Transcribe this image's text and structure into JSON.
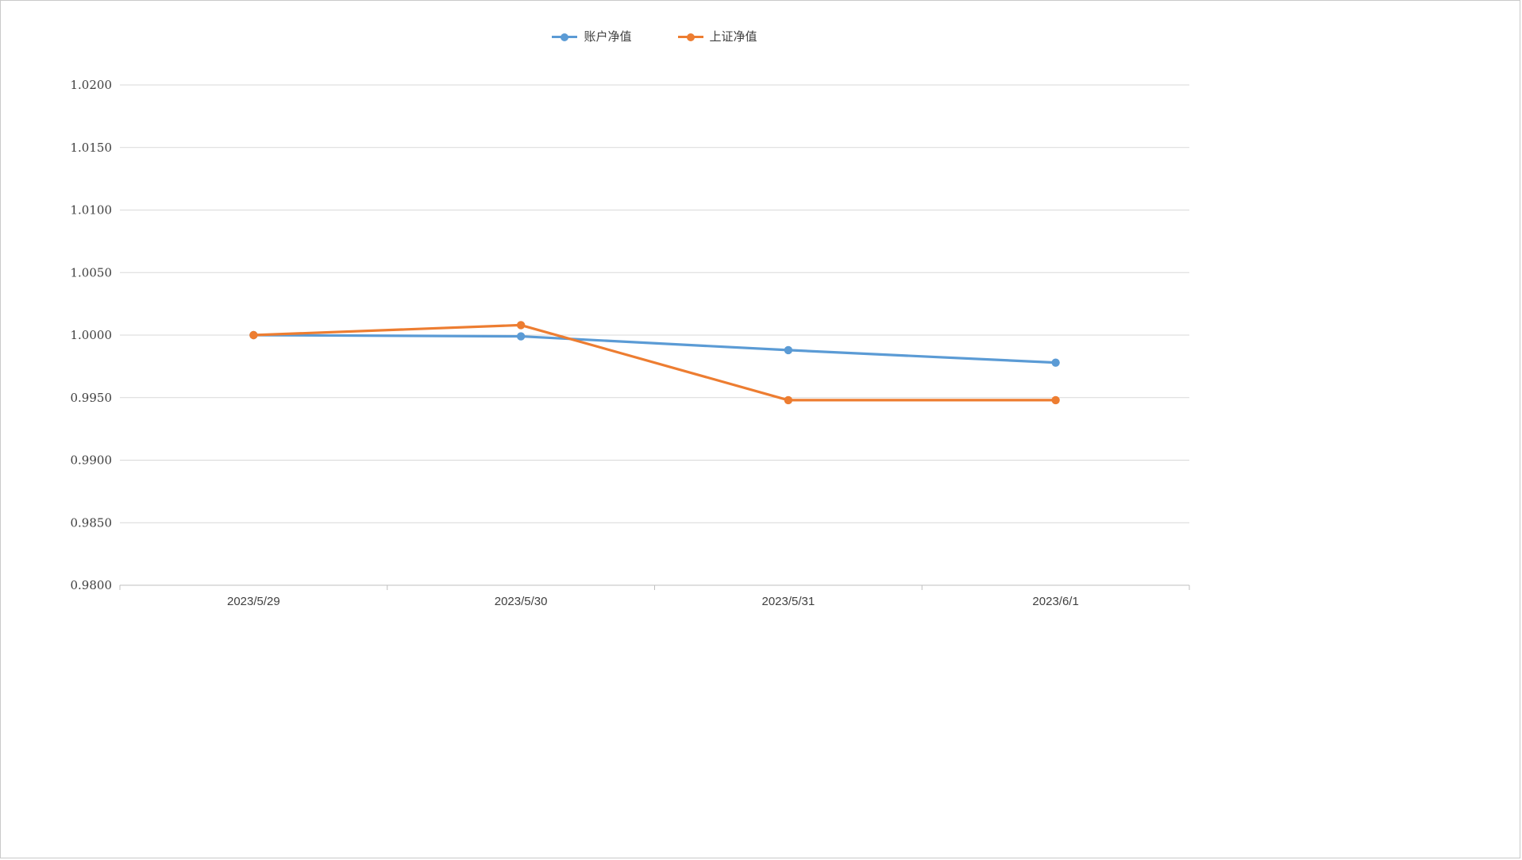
{
  "chart": {
    "background": "#ffffff",
    "border_color": "#c9c9c9",
    "grid_color": "#d9d9d9",
    "axis_color": "#bfbfbf",
    "text_color": "#404040"
  },
  "chart_data": {
    "type": "line",
    "title": "",
    "xlabel": "",
    "ylabel": "",
    "categories": [
      "2023/5/29",
      "2023/5/30",
      "2023/5/31",
      "2023/6/1"
    ],
    "series": [
      {
        "name": "账户净值",
        "color": "#5B9BD5",
        "values": [
          1.0,
          0.9999,
          0.9988,
          0.9978
        ]
      },
      {
        "name": "上证净值",
        "color": "#ED7D31",
        "values": [
          1.0,
          1.0008,
          0.9948,
          0.9948
        ]
      }
    ],
    "ylim": [
      0.98,
      1.02
    ],
    "ytick_step": 0.005,
    "ytick_decimals": 4,
    "grid": true,
    "legend_position": "top",
    "marker": "circle",
    "line_width": 3.2,
    "marker_radius": 5.2
  }
}
